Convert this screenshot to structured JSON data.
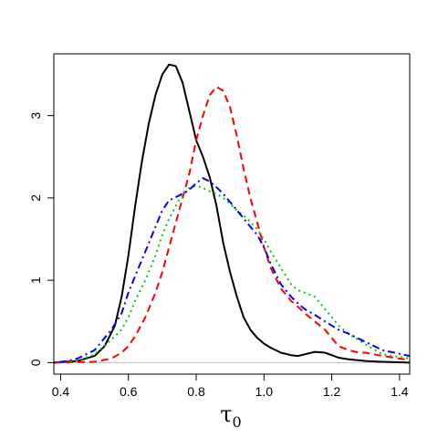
{
  "chart_data": {
    "type": "line",
    "title": "",
    "xlabel": "τ",
    "xlabel_subscript": "0",
    "ylabel": "",
    "xlim": [
      0.38,
      1.43
    ],
    "ylim": [
      -0.14,
      3.75
    ],
    "x_ticks": [
      0.4,
      0.6,
      0.8,
      1.0,
      1.2,
      1.4
    ],
    "x_tick_labels": [
      "0.4",
      "0.6",
      "0.8",
      "1.0",
      "1.2",
      "1.4"
    ],
    "y_ticks": [
      0,
      1,
      2,
      3
    ],
    "y_tick_labels": [
      "0",
      "1",
      "2",
      "3"
    ],
    "grid": false,
    "legend": "none",
    "zero_line_color": "#bebebe",
    "series": [
      {
        "color": "#000000",
        "dash": "solid",
        "x": [
          0.38,
          0.45,
          0.5,
          0.53,
          0.56,
          0.58,
          0.6,
          0.62,
          0.64,
          0.66,
          0.68,
          0.7,
          0.72,
          0.74,
          0.76,
          0.78,
          0.8,
          0.82,
          0.84,
          0.86,
          0.88,
          0.9,
          0.92,
          0.94,
          0.96,
          0.98,
          1.0,
          1.02,
          1.05,
          1.08,
          1.1,
          1.12,
          1.15,
          1.18,
          1.2,
          1.22,
          1.25,
          1.3,
          1.35,
          1.43
        ],
        "y": [
          0.0,
          0.02,
          0.08,
          0.2,
          0.45,
          0.8,
          1.3,
          1.9,
          2.45,
          2.9,
          3.25,
          3.5,
          3.62,
          3.6,
          3.4,
          3.05,
          2.7,
          2.5,
          2.25,
          1.9,
          1.45,
          1.1,
          0.8,
          0.55,
          0.4,
          0.3,
          0.23,
          0.18,
          0.12,
          0.09,
          0.08,
          0.1,
          0.13,
          0.12,
          0.09,
          0.06,
          0.04,
          0.02,
          0.01,
          0.0
        ]
      },
      {
        "color": "#ff0000",
        "dash": "dashed",
        "x": [
          0.38,
          0.5,
          0.55,
          0.58,
          0.6,
          0.62,
          0.65,
          0.68,
          0.7,
          0.72,
          0.75,
          0.78,
          0.8,
          0.82,
          0.84,
          0.86,
          0.88,
          0.9,
          0.92,
          0.94,
          0.96,
          0.98,
          1.0,
          1.02,
          1.05,
          1.08,
          1.1,
          1.12,
          1.15,
          1.18,
          1.2,
          1.22,
          1.25,
          1.28,
          1.3,
          1.35,
          1.43
        ],
        "y": [
          0.0,
          0.01,
          0.05,
          0.12,
          0.2,
          0.32,
          0.55,
          0.85,
          1.1,
          1.4,
          1.85,
          2.3,
          2.7,
          3.0,
          3.25,
          3.35,
          3.3,
          3.1,
          2.75,
          2.35,
          2.0,
          1.7,
          1.4,
          1.15,
          0.9,
          0.75,
          0.68,
          0.6,
          0.5,
          0.4,
          0.3,
          0.2,
          0.15,
          0.12,
          0.12,
          0.08,
          0.03
        ]
      },
      {
        "color": "#00cd00",
        "dash": "dotted",
        "x": [
          0.38,
          0.45,
          0.5,
          0.55,
          0.58,
          0.6,
          0.62,
          0.65,
          0.68,
          0.7,
          0.72,
          0.75,
          0.78,
          0.8,
          0.82,
          0.84,
          0.86,
          0.88,
          0.9,
          0.92,
          0.95,
          0.98,
          1.0,
          1.02,
          1.05,
          1.08,
          1.1,
          1.12,
          1.15,
          1.18,
          1.2,
          1.22,
          1.25,
          1.3,
          1.35,
          1.43
        ],
        "y": [
          0.0,
          0.02,
          0.1,
          0.28,
          0.4,
          0.55,
          0.75,
          1.0,
          1.3,
          1.55,
          1.75,
          1.98,
          2.12,
          2.15,
          2.12,
          2.08,
          2.05,
          2.0,
          1.93,
          1.85,
          1.75,
          1.62,
          1.5,
          1.35,
          1.15,
          0.95,
          0.88,
          0.85,
          0.8,
          0.65,
          0.55,
          0.45,
          0.35,
          0.22,
          0.1,
          0.05
        ]
      },
      {
        "color": "#0000ff",
        "dash": "dotdash",
        "x": [
          0.38,
          0.42,
          0.45,
          0.5,
          0.55,
          0.58,
          0.6,
          0.62,
          0.65,
          0.68,
          0.7,
          0.72,
          0.75,
          0.78,
          0.8,
          0.82,
          0.84,
          0.86,
          0.88,
          0.9,
          0.92,
          0.95,
          0.98,
          1.0,
          1.02,
          1.05,
          1.08,
          1.1,
          1.12,
          1.15,
          1.18,
          1.2,
          1.22,
          1.25,
          1.3,
          1.35,
          1.43
        ],
        "y": [
          0.0,
          0.02,
          0.05,
          0.15,
          0.4,
          0.6,
          0.85,
          1.05,
          1.35,
          1.65,
          1.85,
          1.97,
          2.03,
          2.1,
          2.18,
          2.24,
          2.2,
          2.13,
          2.05,
          1.95,
          1.85,
          1.7,
          1.55,
          1.4,
          1.2,
          0.95,
          0.8,
          0.72,
          0.65,
          0.58,
          0.5,
          0.45,
          0.4,
          0.35,
          0.25,
          0.15,
          0.08
        ]
      }
    ]
  }
}
